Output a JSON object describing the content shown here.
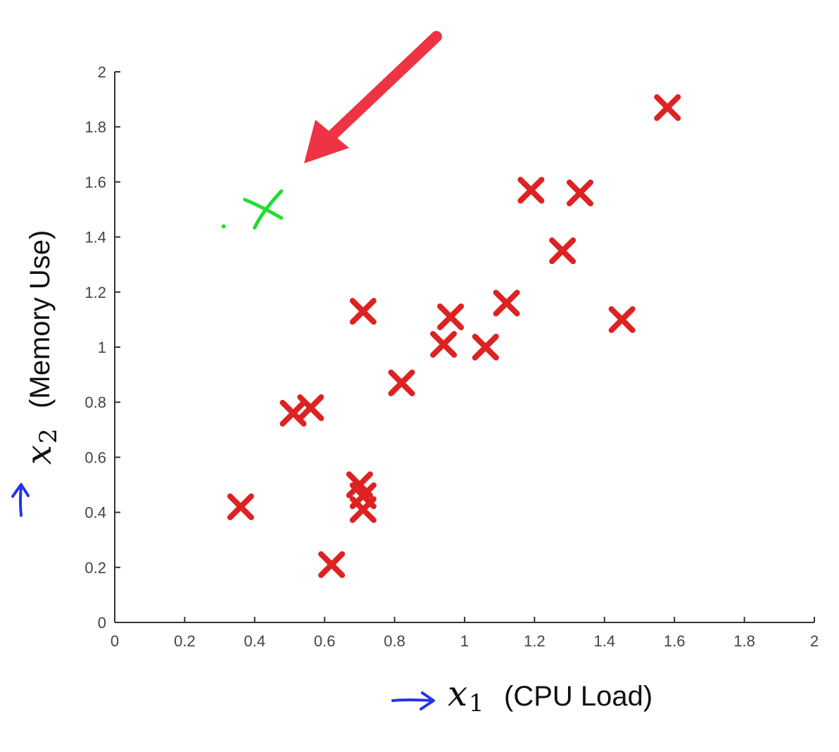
{
  "chart_data": {
    "type": "scatter",
    "xlim": [
      0,
      2
    ],
    "ylim": [
      0,
      2
    ],
    "x_ticks": [
      "0",
      "0.2",
      "0.4",
      "0.6",
      "0.8",
      "1",
      "1.2",
      "1.4",
      "1.6",
      "1.8",
      "2"
    ],
    "y_ticks": [
      "0",
      "0.2",
      "0.4",
      "0.6",
      "0.8",
      "1",
      "1.2",
      "1.4",
      "1.6",
      "1.8",
      "2"
    ],
    "xlabel": {
      "symbol": "x",
      "subscript": "1",
      "text": "(CPU Load)"
    },
    "ylabel": {
      "symbol": "x",
      "subscript": "2",
      "text": "(Memory Use)"
    },
    "grid": false,
    "legend": "none",
    "series": [
      {
        "marker": "x",
        "color": "#dd2222",
        "x": [
          0.36,
          0.51,
          0.56,
          0.62,
          0.7,
          0.71,
          0.71,
          0.71,
          0.82,
          0.94,
          0.96,
          1.06,
          1.12,
          1.19,
          1.28,
          1.33,
          1.45,
          1.58
        ],
        "y": [
          0.42,
          0.76,
          0.78,
          0.21,
          0.5,
          0.46,
          0.41,
          1.13,
          0.87,
          1.01,
          1.11,
          1.0,
          1.16,
          1.57,
          1.35,
          1.56,
          1.1,
          1.87
        ]
      }
    ],
    "annotations": {
      "anomaly_marker": {
        "color": "#22dd33",
        "x": 0.42,
        "y": 1.5
      },
      "arrow_color": "#ee3344",
      "axis_arrow_color": "#2233ee"
    }
  }
}
